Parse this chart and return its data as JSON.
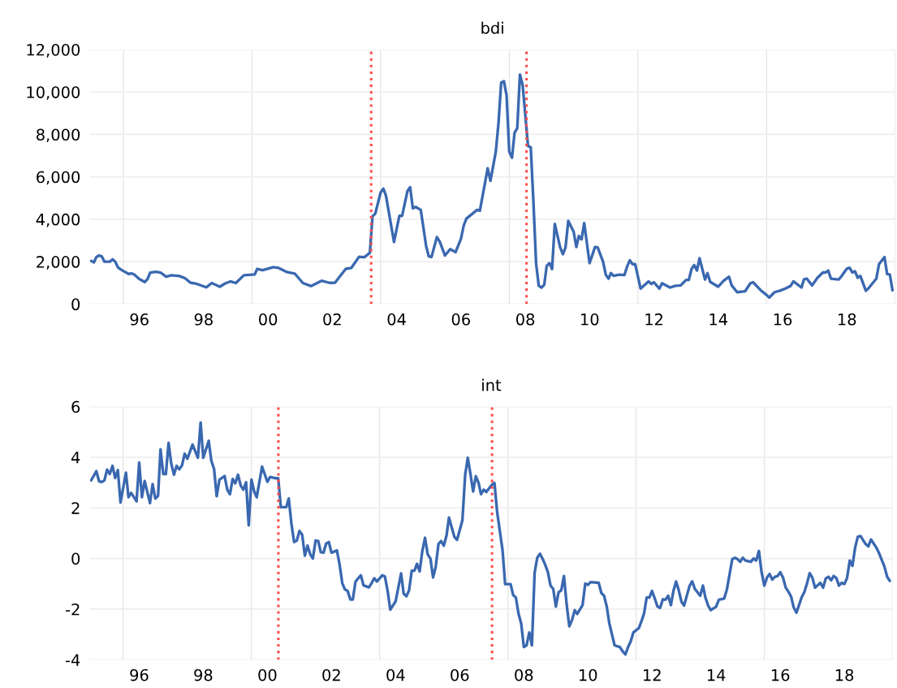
{
  "chart_data": [
    {
      "type": "line",
      "title": "bdi",
      "x": [
        "1995-01",
        "1995-02",
        "1995-03",
        "1995-04",
        "1995-05",
        "1995-06",
        "1995-08",
        "1995-09",
        "1995-10",
        "1995-11",
        "1995-12",
        "1996-01",
        "1996-03",
        "1996-04",
        "1996-05",
        "1996-07",
        "1996-09",
        "1996-10",
        "1996-11",
        "1997-01",
        "1997-03",
        "1997-05",
        "1997-07",
        "1997-10",
        "1997-12",
        "1998-02",
        "1998-04",
        "1998-08",
        "1998-10",
        "1999-01",
        "1999-03",
        "1999-05",
        "1999-07",
        "1999-10",
        "2000-02",
        "2000-03",
        "2000-05",
        "2000-09",
        "2000-11",
        "2001-02",
        "2001-05",
        "2001-08",
        "2001-11",
        "2002-03",
        "2002-06",
        "2002-08",
        "2002-12",
        "2003-02",
        "2003-05",
        "2003-07",
        "2003-09",
        "2003-10",
        "2003-11",
        "2004-01",
        "2004-02",
        "2004-03",
        "2004-06",
        "2004-08",
        "2004-09",
        "2004-11",
        "2004-12",
        "2005-01",
        "2005-02",
        "2005-04",
        "2005-06",
        "2005-07",
        "2005-08",
        "2005-10",
        "2005-11",
        "2006-01",
        "2006-03",
        "2006-05",
        "2006-07",
        "2006-08",
        "2006-09",
        "2007-01",
        "2007-02",
        "2007-05",
        "2007-06",
        "2007-08",
        "2007-09",
        "2007-10",
        "2007-11",
        "2007-12",
        "2008-01",
        "2008-02",
        "2008-03",
        "2008-04",
        "2008-05",
        "2008-06",
        "2008-08",
        "2008-09",
        "2008-10",
        "2008-11",
        "2008-12",
        "2009-01",
        "2009-02",
        "2009-03",
        "2009-04",
        "2009-05",
        "2009-06",
        "2009-08",
        "2009-09",
        "2009-10",
        "2009-11",
        "2010-01",
        "2010-02",
        "2010-03",
        "2010-04",
        "2010-05",
        "2010-07",
        "2010-09",
        "2010-10",
        "2010-12",
        "2011-01",
        "2011-02",
        "2011-03",
        "2011-04",
        "2011-06",
        "2011-08",
        "2011-09",
        "2011-10",
        "2011-11",
        "2011-12",
        "2012-02",
        "2012-05",
        "2012-06",
        "2012-07",
        "2012-09",
        "2012-10",
        "2013-01",
        "2013-03",
        "2013-05",
        "2013-07",
        "2013-08",
        "2013-09",
        "2013-10",
        "2013-11",
        "2013-12",
        "2014-02",
        "2014-03",
        "2014-04",
        "2014-07",
        "2014-09",
        "2014-11",
        "2014-12",
        "2015-02",
        "2015-05",
        "2015-07",
        "2015-08",
        "2015-11",
        "2016-01",
        "2016-02",
        "2016-04",
        "2016-06",
        "2016-08",
        "2016-10",
        "2016-11",
        "2017-02",
        "2017-03",
        "2017-04",
        "2017-06",
        "2017-08",
        "2017-10",
        "2017-11",
        "2017-12",
        "2018-01",
        "2018-04",
        "2018-05",
        "2018-07",
        "2018-08",
        "2018-09",
        "2018-10",
        "2018-11",
        "2018-12",
        "2019-02",
        "2019-03",
        "2019-06",
        "2019-07",
        "2019-09",
        "2019-10",
        "2019-11",
        "2019-12"
      ],
      "series": [
        {
          "color": "#3a68b0",
          "values": [
            2030,
            1970,
            2220,
            2290,
            2250,
            2000,
            2000,
            2110,
            2000,
            1730,
            1640,
            1560,
            1420,
            1450,
            1400,
            1180,
            1040,
            1180,
            1480,
            1520,
            1480,
            1290,
            1360,
            1320,
            1220,
            1010,
            970,
            790,
            990,
            820,
            970,
            1070,
            990,
            1360,
            1400,
            1660,
            1600,
            1740,
            1700,
            1510,
            1440,
            990,
            850,
            1100,
            1000,
            1010,
            1660,
            1700,
            2230,
            2210,
            2420,
            4140,
            4260,
            5260,
            5440,
            5120,
            2930,
            4160,
            4160,
            5330,
            5510,
            4510,
            4580,
            4440,
            2730,
            2250,
            2220,
            3160,
            2960,
            2290,
            2590,
            2450,
            3070,
            3690,
            4030,
            4440,
            4400,
            6400,
            5810,
            7180,
            8550,
            10440,
            10510,
            9850,
            7180,
            6900,
            8070,
            8300,
            10820,
            10330,
            7450,
            7390,
            4840,
            1900,
            860,
            780,
            910,
            1800,
            1930,
            1650,
            3780,
            2670,
            2350,
            2670,
            3920,
            3410,
            2690,
            3210,
            3050,
            3820,
            1930,
            2690,
            2670,
            2000,
            1390,
            1200,
            1460,
            1330,
            1390,
            1370,
            1780,
            2060,
            1880,
            1880,
            730,
            1070,
            950,
            1030,
            730,
            980,
            780,
            860,
            880,
            1140,
            1140,
            1650,
            1840,
            1580,
            2160,
            1160,
            1460,
            1050,
            820,
            1100,
            1290,
            880,
            560,
            600,
            980,
            1030,
            630,
            430,
            310,
            560,
            630,
            730,
            860,
            1070,
            780,
            1170,
            1200,
            880,
            1240,
            1490,
            1490,
            1580,
            1200,
            1160,
            1320,
            1670,
            1710,
            1490,
            1550,
            1240,
            1330,
            630,
            730,
            1200,
            1880,
            2220,
            1420,
            1390,
            650
          ]
        }
      ],
      "xlim": [
        "1994-12-15",
        "2020-01-01"
      ],
      "xticks": [
        {
          "value": "1996-01-01",
          "label": null
        },
        {
          "value": "2000-01-01",
          "label": null
        },
        {
          "value": "2004-01-01",
          "label": null
        },
        {
          "value": "2008-01-01",
          "label": null
        },
        {
          "value": "2012-01-01",
          "label": null
        },
        {
          "value": "2016-01-01",
          "label": null
        },
        {
          "value": "2020-01-01",
          "label": null
        },
        {
          "value": "1996-07-01",
          "label": "96"
        },
        {
          "value": "1998-07-01",
          "label": "98"
        },
        {
          "value": "2000-07-01",
          "label": "00"
        },
        {
          "value": "2002-07-01",
          "label": "02"
        },
        {
          "value": "2004-07-01",
          "label": "04"
        },
        {
          "value": "2006-07-01",
          "label": "06"
        },
        {
          "value": "2008-07-01",
          "label": "08"
        },
        {
          "value": "2010-07-01",
          "label": "10"
        },
        {
          "value": "2012-07-01",
          "label": "12"
        },
        {
          "value": "2014-07-01",
          "label": "14"
        },
        {
          "value": "2016-07-01",
          "label": "16"
        },
        {
          "value": "2018-07-01",
          "label": "18"
        }
      ],
      "ylim": [
        0,
        12000
      ],
      "yticks": [
        0,
        {
          "value": 2000,
          "label": "2,000"
        },
        {
          "value": 4000,
          "label": "4,000"
        },
        {
          "value": 6000,
          "label": "6,000"
        },
        {
          "value": 8000,
          "label": "8,000"
        },
        {
          "value": 10000,
          "label": "10,000"
        },
        {
          "value": 12000,
          "label": "12,000"
        }
      ],
      "grid": true,
      "ref_lines": [
        {
          "axis": "x",
          "value": "2003-09-16",
          "color": "#ff4d4d",
          "line_style": "dotted"
        },
        {
          "axis": "x",
          "value": "2008-07-15",
          "color": "#ff4d4d",
          "line_style": "dotted"
        }
      ]
    },
    {
      "type": "line",
      "title": "int",
      "x": [
        "1995-01",
        "1995-03",
        "1995-04",
        "1995-05",
        "1995-06",
        "1995-07",
        "1995-08",
        "1995-09",
        "1995-10",
        "1995-11",
        "1995-12",
        "1996-02",
        "1996-03",
        "1996-04",
        "1996-06",
        "1996-07",
        "1996-08",
        "1996-09",
        "1996-11",
        "1996-12",
        "1997-01",
        "1997-02",
        "1997-03",
        "1997-04",
        "1997-05",
        "1997-06",
        "1997-07",
        "1997-08",
        "1997-09",
        "1997-10",
        "1997-11",
        "1997-12",
        "1998-01",
        "1998-03",
        "1998-05",
        "1998-06",
        "1998-07",
        "1998-09",
        "1998-10",
        "1998-11",
        "1998-12",
        "1999-01",
        "1999-03",
        "1999-04",
        "1999-05",
        "1999-06",
        "1999-07",
        "1999-08",
        "1999-09",
        "1999-10",
        "1999-11",
        "1999-12",
        "2000-01",
        "2000-02",
        "2000-03",
        "2000-05",
        "2000-07",
        "2000-08",
        "2000-10",
        "2000-11",
        "2000-12",
        "2001-02",
        "2001-03",
        "2001-04",
        "2001-05",
        "2001-06",
        "2001-07",
        "2001-08",
        "2001-09",
        "2001-10",
        "2001-11",
        "2001-12",
        "2002-01",
        "2002-02",
        "2002-03",
        "2002-04",
        "2002-05",
        "2002-06",
        "2002-07",
        "2002-09",
        "2002-10",
        "2002-11",
        "2002-12",
        "2003-01",
        "2003-02",
        "2003-03",
        "2003-04",
        "2003-06",
        "2003-07",
        "2003-09",
        "2003-10",
        "2003-11",
        "2003-12",
        "2004-02",
        "2004-03",
        "2004-04",
        "2004-05",
        "2004-07",
        "2004-09",
        "2004-10",
        "2004-11",
        "2004-12",
        "2005-01",
        "2005-02",
        "2005-03",
        "2005-04",
        "2005-05",
        "2005-06",
        "2005-07",
        "2005-08",
        "2005-09",
        "2005-10",
        "2005-11",
        "2005-12",
        "2006-01",
        "2006-02",
        "2006-03",
        "2006-04",
        "2006-05",
        "2006-06",
        "2006-08",
        "2006-09",
        "2006-10",
        "2006-11",
        "2006-12",
        "2007-01",
        "2007-02",
        "2007-03",
        "2007-04",
        "2007-05",
        "2007-07",
        "2007-08",
        "2007-09",
        "2007-11",
        "2007-12",
        "2008-02",
        "2008-03",
        "2008-04",
        "2008-05",
        "2008-06",
        "2008-07",
        "2008-08",
        "2008-09",
        "2008-10",
        "2008-11",
        "2008-12",
        "2009-01",
        "2009-02",
        "2009-03",
        "2009-04",
        "2009-05",
        "2009-06",
        "2009-07",
        "2009-08",
        "2009-09",
        "2009-10",
        "2009-11",
        "2009-12",
        "2010-01",
        "2010-02",
        "2010-03",
        "2010-05",
        "2010-06",
        "2010-07",
        "2010-08",
        "2010-11",
        "2010-12",
        "2011-01",
        "2011-02",
        "2011-03",
        "2011-05",
        "2011-07",
        "2011-08",
        "2011-09",
        "2011-10",
        "2011-11",
        "2011-12",
        "2012-02",
        "2012-03",
        "2012-04",
        "2012-05",
        "2012-06",
        "2012-07",
        "2012-08",
        "2012-09",
        "2012-10",
        "2012-11",
        "2012-12",
        "2013-01",
        "2013-02",
        "2013-03",
        "2013-04",
        "2013-05",
        "2013-06",
        "2013-07",
        "2013-08",
        "2013-09",
        "2013-10",
        "2013-11",
        "2014-01",
        "2014-02",
        "2014-03",
        "2014-04",
        "2014-05",
        "2014-07",
        "2014-08",
        "2014-10",
        "2014-11",
        "2015-01",
        "2015-02",
        "2015-03",
        "2015-04",
        "2015-05",
        "2015-06",
        "2015-08",
        "2015-09",
        "2015-10",
        "2015-11",
        "2015-12",
        "2016-01",
        "2016-02",
        "2016-03",
        "2016-04",
        "2016-05",
        "2016-06",
        "2016-07",
        "2016-08",
        "2016-09",
        "2016-10",
        "2016-11",
        "2016-12",
        "2017-01",
        "2017-03",
        "2017-04",
        "2017-05",
        "2017-06",
        "2017-07",
        "2017-08",
        "2017-10",
        "2017-11",
        "2017-12",
        "2018-01",
        "2018-02",
        "2018-03",
        "2018-04",
        "2018-05",
        "2018-06",
        "2018-07",
        "2018-08",
        "2018-09",
        "2018-10",
        "2018-11",
        "2018-12",
        "2019-01",
        "2019-03",
        "2019-04",
        "2019-05",
        "2019-07",
        "2019-08",
        "2019-10",
        "2019-11",
        "2019-12"
      ],
      "series": [
        {
          "color": "#3a68b0",
          "values": [
            3.09,
            3.45,
            3.05,
            3.02,
            3.09,
            3.51,
            3.34,
            3.66,
            3.18,
            3.49,
            2.21,
            3.39,
            2.42,
            2.59,
            2.26,
            3.79,
            2.42,
            3.06,
            2.19,
            2.94,
            2.37,
            2.48,
            4.31,
            3.34,
            3.34,
            4.57,
            3.75,
            3.31,
            3.66,
            3.52,
            3.68,
            4.14,
            3.94,
            4.5,
            3.98,
            5.37,
            3.98,
            4.65,
            3.86,
            3.54,
            2.46,
            3.11,
            3.26,
            2.72,
            2.54,
            3.14,
            2.97,
            3.31,
            2.88,
            2.72,
            3.01,
            1.31,
            3.12,
            2.65,
            2.42,
            3.63,
            3.03,
            3.22,
            3.17,
            3.17,
            2.03,
            2.03,
            2.37,
            1.37,
            0.65,
            0.71,
            1.09,
            0.94,
            0.11,
            0.51,
            0.17,
            0.0,
            0.71,
            0.69,
            0.25,
            0.23,
            0.59,
            0.65,
            0.23,
            0.32,
            -0.23,
            -0.97,
            -1.22,
            -1.28,
            -1.62,
            -1.62,
            -0.91,
            -0.66,
            -1.06,
            -1.14,
            -0.97,
            -0.78,
            -0.91,
            -0.66,
            -0.71,
            -1.28,
            -2.02,
            -1.69,
            -0.59,
            -1.39,
            -1.49,
            -1.26,
            -0.48,
            -0.48,
            -0.21,
            -0.51,
            0.29,
            0.82,
            0.17,
            0.0,
            -0.75,
            -0.32,
            0.57,
            0.69,
            0.51,
            0.91,
            1.62,
            1.23,
            0.86,
            0.74,
            1.51,
            3.29,
            3.98,
            3.34,
            2.65,
            3.25,
            2.99,
            2.54,
            2.72,
            2.63,
            2.91,
            2.99,
            1.83,
            0.34,
            -1.01,
            -1.01,
            -1.44,
            -1.54,
            -2.17,
            -2.57,
            -3.5,
            -3.43,
            -2.92,
            -3.43,
            -0.56,
            0.03,
            0.19,
            -0.02,
            -0.24,
            -0.54,
            -1.07,
            -1.2,
            -1.9,
            -1.33,
            -1.25,
            -0.69,
            -1.82,
            -2.68,
            -2.43,
            -2.04,
            -2.19,
            -1.84,
            -0.99,
            -1.04,
            -0.93,
            -0.96,
            -1.36,
            -1.47,
            -1.9,
            -2.54,
            -3.43,
            -3.5,
            -3.67,
            -3.79,
            -3.5,
            -3.27,
            -2.92,
            -2.75,
            -2.49,
            -2.17,
            -1.54,
            -1.54,
            -1.28,
            -1.58,
            -1.9,
            -1.95,
            -1.61,
            -1.63,
            -1.47,
            -1.84,
            -1.29,
            -0.91,
            -1.25,
            -1.71,
            -1.86,
            -1.47,
            -1.09,
            -0.9,
            -1.2,
            -1.47,
            -1.07,
            -1.54,
            -1.86,
            -2.04,
            -1.9,
            -1.63,
            -1.58,
            -1.22,
            -0.02,
            0.03,
            -0.02,
            -0.13,
            0.03,
            -0.08,
            -0.13,
            0.0,
            -0.08,
            0.3,
            -0.54,
            -1.07,
            -0.75,
            -0.61,
            -0.83,
            -0.72,
            -0.69,
            -0.54,
            -0.75,
            -1.15,
            -1.31,
            -1.5,
            -1.93,
            -2.14,
            -1.54,
            -1.33,
            -0.99,
            -0.58,
            -0.75,
            -1.15,
            -0.96,
            -1.15,
            -0.79,
            -0.72,
            -0.86,
            -0.69,
            -0.77,
            -1.07,
            -0.96,
            -1.01,
            -0.77,
            -0.08,
            -0.29,
            0.43,
            0.86,
            0.89,
            0.57,
            0.48,
            0.75,
            0.43,
            0.21,
            -0.32,
            -0.72,
            -0.88
          ]
        }
      ],
      "xlim": [
        "1994-12-15",
        "2020-01-01"
      ],
      "xticks": [
        {
          "value": "1996-01-01",
          "label": null
        },
        {
          "value": "2000-01-01",
          "label": null
        },
        {
          "value": "2004-01-01",
          "label": null
        },
        {
          "value": "2008-01-01",
          "label": null
        },
        {
          "value": "2012-01-01",
          "label": null
        },
        {
          "value": "2016-01-01",
          "label": null
        },
        {
          "value": "2020-01-01",
          "label": null
        },
        {
          "value": "1996-07-01",
          "label": "96"
        },
        {
          "value": "1998-07-01",
          "label": "98"
        },
        {
          "value": "2000-07-01",
          "label": "00"
        },
        {
          "value": "2002-07-01",
          "label": "02"
        },
        {
          "value": "2004-07-01",
          "label": "04"
        },
        {
          "value": "2006-07-01",
          "label": "06"
        },
        {
          "value": "2008-07-01",
          "label": "08"
        },
        {
          "value": "2010-07-01",
          "label": "10"
        },
        {
          "value": "2012-07-01",
          "label": "12"
        },
        {
          "value": "2014-07-01",
          "label": "14"
        },
        {
          "value": "2016-07-01",
          "label": "16"
        },
        {
          "value": "2018-07-01",
          "label": "18"
        }
      ],
      "ylim": [
        -4,
        6
      ],
      "yticks": [
        -4,
        -2,
        0,
        2,
        4,
        6
      ],
      "grid": true,
      "ref_lines": [
        {
          "axis": "x",
          "value": "2000-11-03",
          "color": "#ff4d4d",
          "line_style": "dotted"
        },
        {
          "axis": "x",
          "value": "2007-07-05",
          "color": "#ff4d4d",
          "line_style": "dotted"
        }
      ]
    }
  ]
}
